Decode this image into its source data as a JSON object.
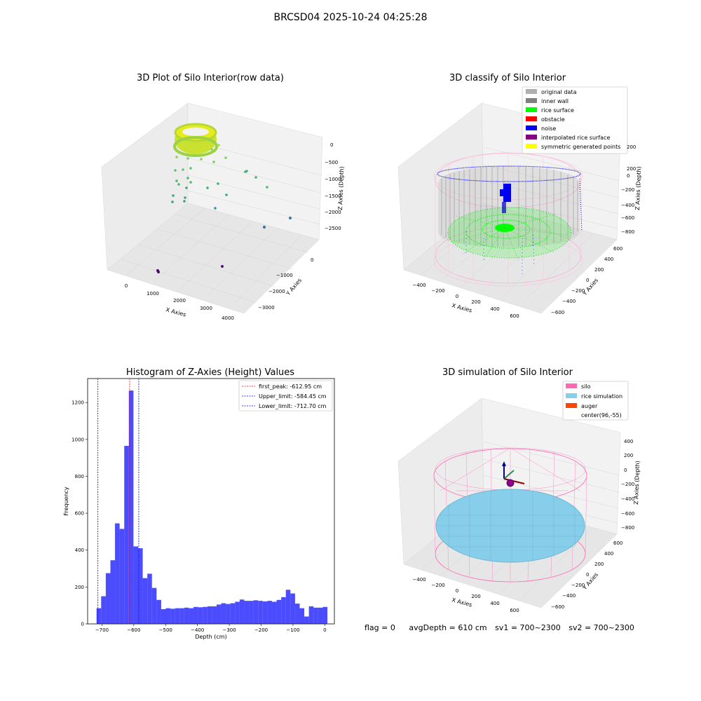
{
  "suptitle": "BRCSD04 2025-10-24 04:25:28",
  "panels": {
    "raw": {
      "title": "3D Plot of Silo Interior(row data)",
      "xlabel": "X Axies",
      "ylabel": "Y Axies",
      "zlabel": "Z Axies (Depth)",
      "x_ticks": [
        "0",
        "1000",
        "2000",
        "3000",
        "4000"
      ],
      "y_ticks": [
        "0",
        "−1000",
        "−2000",
        "−3000"
      ],
      "z_ticks": [
        "0",
        "−500",
        "−1000",
        "−1500",
        "−2000",
        "−2500"
      ]
    },
    "classify": {
      "title": "3D classify of Silo Interior",
      "xlabel": "X Axies",
      "ylabel": "Y Axies",
      "zlabel": "Z Axies (Depth)",
      "x_ticks": [
        "−400",
        "−200",
        "0",
        "200",
        "400",
        "600"
      ],
      "y_ticks": [
        "600",
        "400",
        "200",
        "0",
        "−200",
        "−400",
        "−600"
      ],
      "z_ticks": [
        "200",
        "0",
        "−200",
        "−400",
        "−600",
        "−800"
      ],
      "legend": [
        {
          "label": "original data",
          "color": "#b0b0b0"
        },
        {
          "label": "inner wall",
          "color": "#808080"
        },
        {
          "label": "rice surface",
          "color": "#00ff00"
        },
        {
          "label": "obstacle",
          "color": "#ff0000"
        },
        {
          "label": "noise",
          "color": "#0000ff"
        },
        {
          "label": "interpolated rice surface",
          "color": "#800080"
        },
        {
          "label": "symmetric generated points",
          "color": "#ffff00"
        }
      ]
    },
    "simulation": {
      "title": "3D simulation of Silo Interior",
      "xlabel": "X Axies",
      "ylabel": "Y Axies",
      "zlabel": "Z Axies (Depth)",
      "x_ticks": [
        "−400",
        "−200",
        "0",
        "200",
        "400",
        "600"
      ],
      "y_ticks": [
        "600",
        "400",
        "200",
        "0",
        "−200",
        "−400",
        "−600"
      ],
      "z_ticks": [
        "400",
        "200",
        "0",
        "−200",
        "−400",
        "−600",
        "−800"
      ],
      "legend": [
        {
          "label": "silo",
          "color": "#ff69b4"
        },
        {
          "label": "rice simulation",
          "color": "#87ceeb"
        },
        {
          "label": "auger",
          "color": "#ff4500"
        },
        {
          "label": "center(96,-55)",
          "color": ""
        }
      ]
    }
  },
  "footer": {
    "flag": "flag = 0",
    "avg": "avgDepth = 610 cm",
    "sv1": "sv1 = 700~2300",
    "sv2": "sv2 = 700~2300"
  },
  "chart_data": {
    "type": "bar",
    "title": "Histogram of Z-Axies (Height) Values",
    "xlabel": "Depth (cm)",
    "ylabel": "Frequency",
    "xlim": [
      -745,
      30
    ],
    "ylim": [
      0,
      1330
    ],
    "x_ticks": [
      -700,
      -600,
      -500,
      -400,
      -300,
      -200,
      -100,
      0
    ],
    "y_ticks": [
      0,
      200,
      400,
      600,
      800,
      1000,
      1200
    ],
    "bin_width": 14.5,
    "bin_starts": [
      -717,
      -702.5,
      -688,
      -673.5,
      -659,
      -644.5,
      -630,
      -615.5,
      -601,
      -586.5,
      -572,
      -557.5,
      -543,
      -528.5,
      -514,
      -499.5,
      -485,
      -470.5,
      -456,
      -441.5,
      -427,
      -412.5,
      -398,
      -383.5,
      -369,
      -354.5,
      -340,
      -325.5,
      -311,
      -296.5,
      -282,
      -267.5,
      -253,
      -238.5,
      -224,
      -209.5,
      -195,
      -180.5,
      -166,
      -151.5,
      -137,
      -122.5,
      -108,
      -93.5,
      -79,
      -64.5,
      -50,
      -35.5,
      -21,
      -6.5
    ],
    "values": [
      85,
      150,
      275,
      345,
      545,
      515,
      965,
      1265,
      420,
      410,
      248,
      272,
      195,
      130,
      80,
      85,
      82,
      85,
      85,
      88,
      85,
      92,
      90,
      92,
      95,
      95,
      105,
      112,
      108,
      112,
      120,
      132,
      125,
      125,
      128,
      125,
      122,
      125,
      120,
      130,
      145,
      185,
      165,
      110,
      85,
      40,
      95,
      88,
      88,
      92
    ],
    "bar_color": "#0000ff",
    "vlines": [
      {
        "label": "first_peak: -612.95 cm",
        "x": -612.95,
        "color": "#ff0000"
      },
      {
        "label": "Upper_limit: -584.45 cm",
        "x": -584.45,
        "color": "#0000ff"
      },
      {
        "label": "Lower_limit: -712.70 cm",
        "x": -712.7,
        "color": "#0000ff"
      }
    ],
    "legend_position": "upper right"
  }
}
